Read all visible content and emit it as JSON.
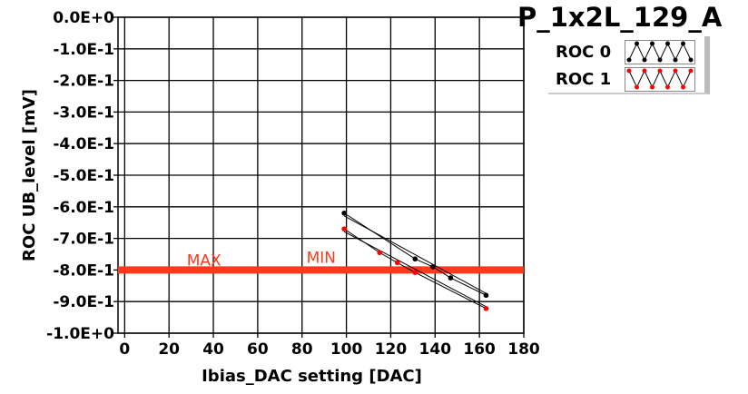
{
  "chart_data": {
    "type": "scatter",
    "title": "P_1x2L_129_A",
    "xlabel": "Ibias_DAC setting [DAC]",
    "ylabel": "ROC UB_level [mV]",
    "xlim": [
      -3,
      180
    ],
    "ylim": [
      -1.0,
      0.0
    ],
    "grid": true,
    "legend_position": "top-right",
    "x_ticks": [
      0,
      20,
      40,
      60,
      80,
      100,
      120,
      140,
      160,
      180
    ],
    "x_tick_labels": [
      "0",
      "20",
      "40",
      "60",
      "80",
      "100",
      "120",
      "140",
      "160",
      "180"
    ],
    "y_ticks": [
      0,
      -0.1,
      -0.2,
      -0.3,
      -0.4,
      -0.5,
      -0.6,
      -0.7,
      -0.8,
      -0.9,
      -1.0
    ],
    "y_tick_labels": [
      "0.0E+0",
      "-1.0E-1",
      "-2.0E-1",
      "-3.0E-1",
      "-4.0E-1",
      "-5.0E-1",
      "-6.0E-1",
      "-7.0E-1",
      "-8.0E-1",
      "-9.0E-1",
      "-1.0E+0"
    ],
    "series": [
      {
        "name": "ROC 0",
        "color": "#000000",
        "x": [
          99,
          131,
          139,
          147,
          163
        ],
        "y": [
          -0.62,
          -0.765,
          -0.79,
          -0.825,
          -0.88
        ]
      },
      {
        "name": "ROC 1",
        "color": "#ff0000",
        "x": [
          99,
          115,
          123,
          131,
          163
        ],
        "y": [
          -0.67,
          -0.745,
          -0.777,
          -0.808,
          -0.922
        ]
      }
    ],
    "threshold": {
      "value": -0.8,
      "color": "#ff3a1a",
      "max_label": "MAX",
      "min_label": "MIN",
      "max_label_x": 28,
      "min_label_x": 82
    }
  }
}
